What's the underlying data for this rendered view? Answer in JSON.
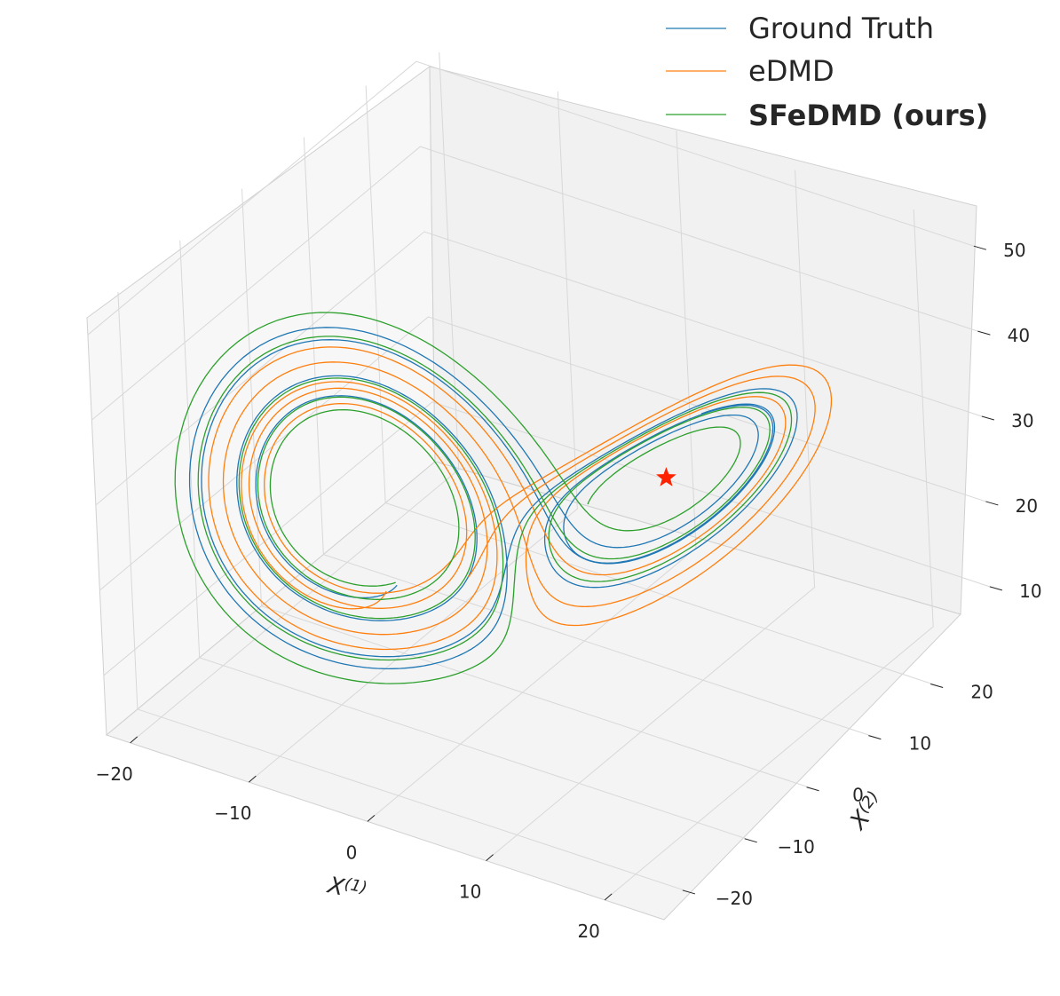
{
  "chart_data": {
    "type": "line",
    "projection": "3d",
    "axes": {
      "x": {
        "label": "X",
        "label_sup": "(1)",
        "ticks": [
          -20,
          -10,
          0,
          10,
          20
        ],
        "tick_labels": [
          "−20",
          "−10",
          "0",
          "10",
          "20"
        ],
        "range": [
          -22,
          25
        ]
      },
      "y": {
        "label": "X",
        "label_sup": "(2)",
        "ticks": [
          -20,
          -10,
          0,
          10,
          20
        ],
        "tick_labels": [
          "−20",
          "−10",
          "0",
          "10",
          "20"
        ],
        "range": [
          -25,
          28
        ]
      },
      "z": {
        "label": "",
        "ticks": [
          10,
          20,
          30,
          40,
          50
        ],
        "tick_labels": [
          "10",
          "20",
          "30",
          "40",
          "50"
        ],
        "range": [
          3,
          52
        ]
      }
    },
    "grid": true,
    "legend": {
      "position": "top-right"
    },
    "colors": {
      "ground_truth": "#1f77b4",
      "edmd": "#ff7f0e",
      "sfedmd": "#2ca02c",
      "marker": "#ff2200"
    },
    "fixed_point_marker": {
      "x": 8.49,
      "y": 8.49,
      "z": 27.0,
      "shape": "star"
    },
    "series": [
      {
        "name": "Ground Truth",
        "bold": false,
        "color": "#1f77b4"
      },
      {
        "name": "eDMD",
        "bold": false,
        "color": "#ff7f0e"
      },
      {
        "name": "SFeDMD (ours)",
        "bold": true,
        "color": "#2ca02c"
      }
    ],
    "legend_entries": [
      "Ground Truth",
      "eDMD",
      "SFeDMD (ours)"
    ]
  }
}
